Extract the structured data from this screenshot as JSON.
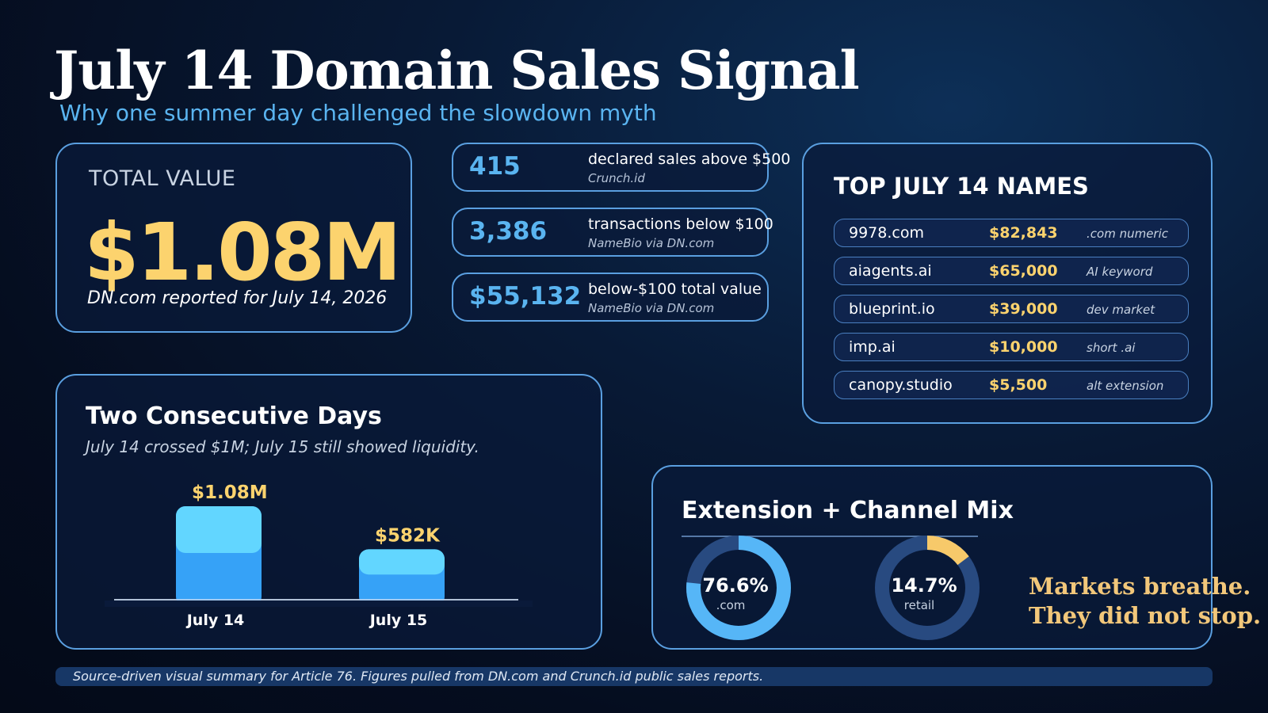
{
  "header": {
    "title": "July 14 Domain Sales Signal",
    "subtitle": "Why one summer day challenged the slowdown myth"
  },
  "total": {
    "label": "TOTAL VALUE",
    "value": "$1.08M",
    "note": "DN.com reported for July 14, 2026"
  },
  "stats": [
    {
      "number": "415",
      "description": "declared sales above $500",
      "source": "Crunch.id"
    },
    {
      "number": "3,386",
      "description": "transactions below $100",
      "source": "NameBio via DN.com"
    },
    {
      "number": "$55,132",
      "description": "below-$100 total value",
      "source": "NameBio via DN.com"
    }
  ],
  "top_names": {
    "title": "TOP JULY 14 NAMES",
    "rows": [
      {
        "domain": "9978.com",
        "price": "$82,843",
        "tag": ".com numeric"
      },
      {
        "domain": "aiagents.ai",
        "price": "$65,000",
        "tag": "AI keyword"
      },
      {
        "domain": "blueprint.io",
        "price": "$39,000",
        "tag": "dev market"
      },
      {
        "domain": "imp.ai",
        "price": "$10,000",
        "tag": "short .ai"
      },
      {
        "domain": "canopy.studio",
        "price": "$5,500",
        "tag": "alt extension"
      }
    ]
  },
  "colors": {
    "accent_blue": "#5ab4f0",
    "gold": "#fcd36e",
    "bar_top": "#62d6ff",
    "bar_bottom": "#36a2f7",
    "donut_blue": "#56b6f7",
    "donut_gold": "#f7c96a",
    "donut_track": "#284a80"
  },
  "chart_data": [
    {
      "type": "bar",
      "title": "Two Consecutive Days",
      "subtitle": "July 14 crossed $1M; July 15 still showed liquidity.",
      "categories": [
        "July 14",
        "July 15"
      ],
      "values": [
        1080000,
        582000
      ],
      "data_labels": [
        "$1.08M",
        "$582K"
      ],
      "xlabel": "",
      "ylabel": "",
      "ylim": [
        0,
        1080000
      ],
      "grid": false
    },
    {
      "type": "pie",
      "title": "Extension + Channel Mix",
      "donuts": [
        {
          "value": 76.6,
          "label": "76.6%",
          "caption": ".com",
          "color": "#56b6f7"
        },
        {
          "value": 14.7,
          "label": "14.7%",
          "caption": "retail",
          "color": "#f7c96a"
        }
      ]
    }
  ],
  "tagline": [
    "Markets breathe.",
    "They did not stop."
  ],
  "footer": "Source-driven visual summary for Article 76. Figures pulled from DN.com and Crunch.id public sales reports."
}
